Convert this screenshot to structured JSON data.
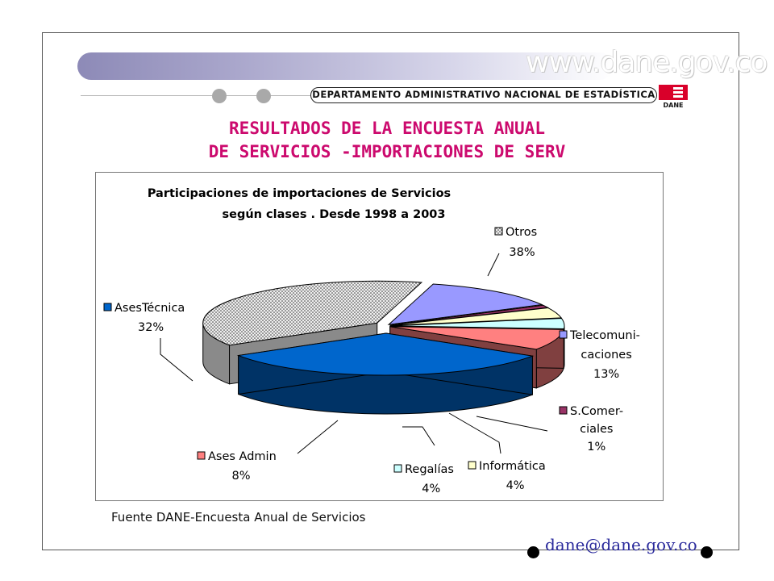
{
  "header": {
    "website": "www.dane.gov.co",
    "department": "DEPARTAMENTO ADMINISTRATIVO NACIONAL DE ESTADÍSTICA",
    "logo_text": "DANE"
  },
  "slide": {
    "title_line1": "RESULTADOS DE LA ENCUESTA ANUAL",
    "title_line2": "DE SERVICIOS -IMPORTACIONES DE SERV"
  },
  "chart_data": {
    "type": "pie",
    "title_line1": "Participaciones de importaciones de Servicios",
    "title_line2": "según clases . Desde  1998 a 2003",
    "slices": [
      {
        "label": "Otros",
        "label_lines": [
          "Otros",
          "38%"
        ],
        "value": 38,
        "color": "#d8d8d8",
        "side": "#8a8a8a",
        "pattern": true
      },
      {
        "label": "Telecomuni-caciones",
        "label_lines": [
          "Telecomuni-",
          "caciones",
          "13%"
        ],
        "value": 13,
        "color": "#9999ff",
        "side": "#4d4d88"
      },
      {
        "label": "S.Comer-ciales",
        "label_lines": [
          "S.Comer-",
          "ciales",
          "1%"
        ],
        "value": 1,
        "color": "#993366",
        "side": "#4d1a33"
      },
      {
        "label": "Informática",
        "label_lines": [
          "Informática",
          "4%"
        ],
        "value": 4,
        "color": "#ffffcc",
        "side": "#808066"
      },
      {
        "label": "Regalías",
        "label_lines": [
          "Regalías",
          "4%"
        ],
        "value": 4,
        "color": "#ccffff",
        "side": "#668080"
      },
      {
        "label": "Ases Admin",
        "label_lines": [
          "Ases Admin",
          "8%"
        ],
        "value": 8,
        "color": "#ff8080",
        "side": "#804040"
      },
      {
        "label": "AsesTécnica",
        "label_lines": [
          "AsesTécnica",
          "32%"
        ],
        "value": 32,
        "color": "#0066cc",
        "side": "#003366"
      }
    ]
  },
  "footer": {
    "source": "Fuente DANE-Encuesta Anual de Servicios",
    "email": "dane@dane.gov.co"
  }
}
